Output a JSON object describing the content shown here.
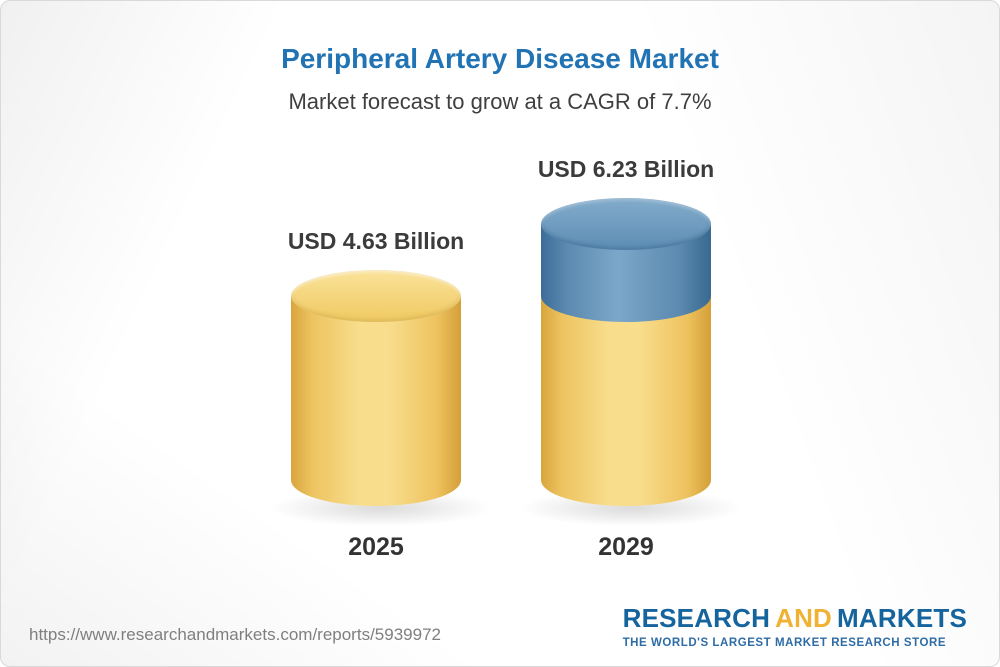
{
  "header": {
    "title": "Peripheral Artery Disease Market",
    "subtitle": "Market forecast to grow at a CAGR of 7.7%"
  },
  "chart_data": {
    "type": "bar",
    "title": "Peripheral Artery Disease Market",
    "subtitle": "Market forecast to grow at a CAGR of 7.7%",
    "categories": [
      "2025",
      "2029"
    ],
    "values": [
      4.63,
      6.23
    ],
    "unit": "USD Billion",
    "value_labels": [
      "USD 4.63 Billion",
      "USD 6.23 Billion"
    ],
    "cagr_percent": 7.7,
    "bar_base_color": "#f2cf79",
    "bar_growth_color": "#5e8db4",
    "legend": "none",
    "ylim": [
      0,
      7
    ],
    "grid": false
  },
  "footer": {
    "url": "https://www.researchandmarkets.com/reports/5939972",
    "logo": {
      "word1": "RESEARCH",
      "word2": "AND",
      "word3": "MARKETS",
      "tagline": "THE WORLD'S LARGEST MARKET RESEARCH STORE"
    }
  },
  "colors": {
    "title_blue": "#2173b4",
    "text_dark": "#3b3b3b",
    "logo_blue": "#15649e",
    "logo_gold": "#f0b232",
    "url_gray": "#7f7f7f"
  }
}
